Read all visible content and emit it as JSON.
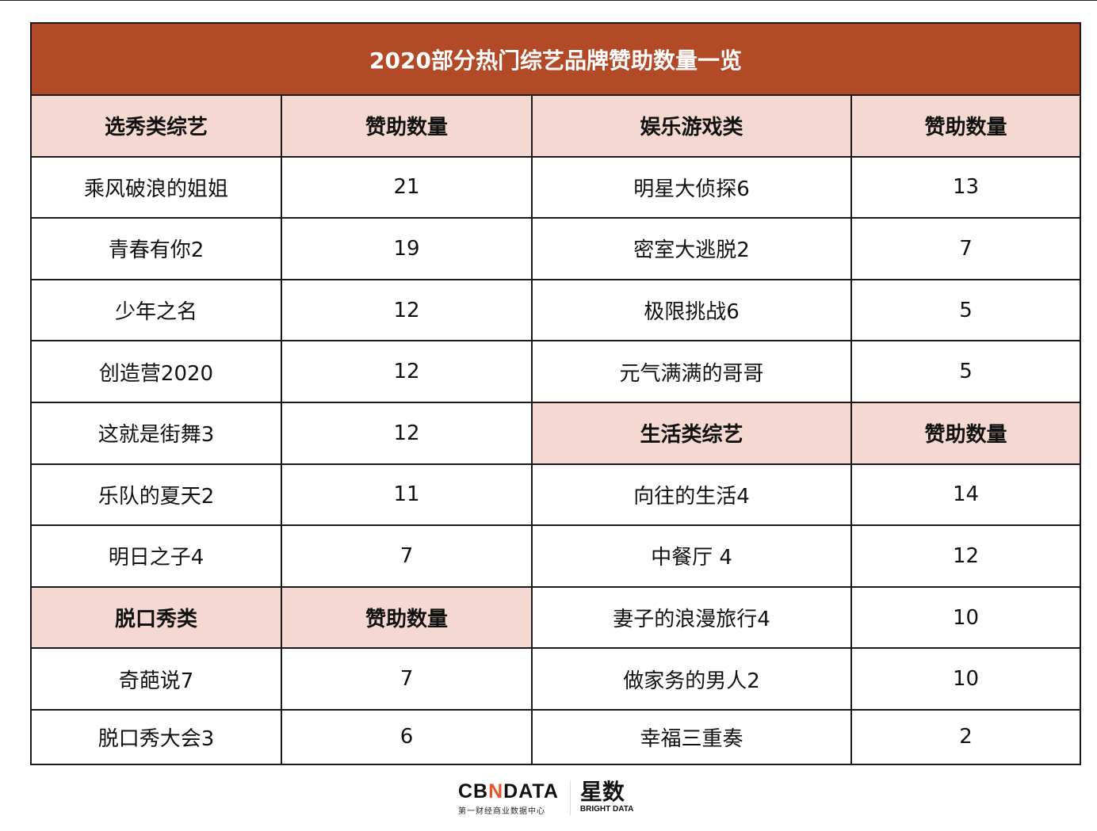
{
  "title": "2020部分热门综艺品牌赞助数量一览",
  "rows": [
    {
      "type": "header",
      "c1": "选秀类综艺",
      "c2": "赞助数量",
      "c3": "娱乐游戏类",
      "c4": "赞助数量",
      "hl": [
        1,
        1,
        1,
        1
      ]
    },
    {
      "c1": "乘风破浪的姐姐",
      "c2": "21",
      "c3": "明星大侦探6",
      "c4": "13",
      "hl": [
        0,
        0,
        0,
        0
      ]
    },
    {
      "c1": "青春有你2",
      "c2": "19",
      "c3": "密室大逃脱2",
      "c4": "7",
      "hl": [
        0,
        0,
        0,
        0
      ]
    },
    {
      "c1": "少年之名",
      "c2": "12",
      "c3": "极限挑战6",
      "c4": "5",
      "hl": [
        0,
        0,
        0,
        0
      ]
    },
    {
      "c1": "创造营2020",
      "c2": "12",
      "c3": "元气满满的哥哥",
      "c4": "5",
      "hl": [
        0,
        0,
        0,
        0
      ]
    },
    {
      "c1": "这就是街舞3",
      "c2": "12",
      "c3": "生活类综艺",
      "c4": "赞助数量",
      "hl": [
        0,
        0,
        1,
        1
      ]
    },
    {
      "c1": "乐队的夏天2",
      "c2": "11",
      "c3": "向往的生活4",
      "c4": "14",
      "hl": [
        0,
        0,
        0,
        0
      ]
    },
    {
      "c1": "明日之子4",
      "c2": "7",
      "c3": "中餐厅  4",
      "c4": "12",
      "hl": [
        0,
        0,
        0,
        0
      ]
    },
    {
      "c1": "脱口秀类",
      "c2": "赞助数量",
      "c3": "妻子的浪漫旅行4",
      "c4": "10",
      "hl": [
        1,
        1,
        0,
        0
      ]
    },
    {
      "c1": "奇葩说7",
      "c2": "7",
      "c3": "做家务的男人2",
      "c4": "10",
      "hl": [
        0,
        0,
        0,
        0
      ]
    },
    {
      "c1": "脱口秀大会3",
      "c2": "6",
      "c3": "幸福三重奏",
      "c4": "2",
      "hl": [
        0,
        0,
        0,
        0
      ]
    }
  ],
  "footer": {
    "cbn_logo_pre": "CB",
    "cbn_logo_x": "N",
    "cbn_logo_post": "DATA",
    "cbn_subtitle": "第一财经商业数据中心",
    "bright_cn": "星数",
    "bright_en": "BRIGHT DATA"
  },
  "colors": {
    "title_bg": "#b34a27",
    "header_bg": "#f4d8d1",
    "border": "#1a1a1a",
    "logo_accent": "#e8552b"
  }
}
